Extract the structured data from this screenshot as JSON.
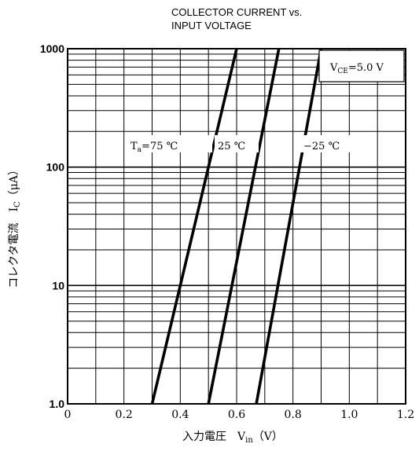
{
  "chart_data": {
    "type": "line",
    "title_lines": [
      "COLLECTOR CURRENT vs.",
      "INPUT VOLTAGE"
    ],
    "xlabel": "入力電圧　V",
    "xlabel_sub": "in",
    "xlabel_unit": "（V）",
    "ylabel": "コレクタ電流　I",
    "ylabel_sub": "C",
    "ylabel_unit": "（μA）",
    "xlim": [
      0,
      1.2
    ],
    "ylim": [
      1.0,
      1000
    ],
    "y_scale": "log",
    "grid": true,
    "x_ticks": [
      {
        "value": 0,
        "label": "0"
      },
      {
        "value": 0.2,
        "label": "0.2"
      },
      {
        "value": 0.4,
        "label": "0.4"
      },
      {
        "value": 0.6,
        "label": "0.6"
      },
      {
        "value": 0.8,
        "label": "0.8"
      },
      {
        "value": 1.0,
        "label": "1.0"
      },
      {
        "value": 1.2,
        "label": "1.2"
      }
    ],
    "y_ticks": [
      {
        "value": 1.0,
        "label": "1.0"
      },
      {
        "value": 10,
        "label": "10"
      },
      {
        "value": 100,
        "label": "100"
      },
      {
        "value": 1000,
        "label": "1000"
      }
    ],
    "series": [
      {
        "name": "Ta=75 ℃",
        "x": [
          0.3,
          0.6
        ],
        "y": [
          1.0,
          1000
        ]
      },
      {
        "name": "25 ℃",
        "x": [
          0.5,
          0.75
        ],
        "y": [
          1.0,
          1000
        ]
      },
      {
        "name": "−25 ℃",
        "x": [
          0.67,
          0.9
        ],
        "y": [
          1.0,
          1000
        ]
      }
    ],
    "annotations": {
      "condition": {
        "prefix": "V",
        "sub": "CE",
        "text": "=5.0 V"
      },
      "label_75": {
        "prefix": "T",
        "sub": "a",
        "text": "=75 ℃"
      },
      "label_25": "25 ℃",
      "label_m25": "−25 ℃"
    }
  }
}
